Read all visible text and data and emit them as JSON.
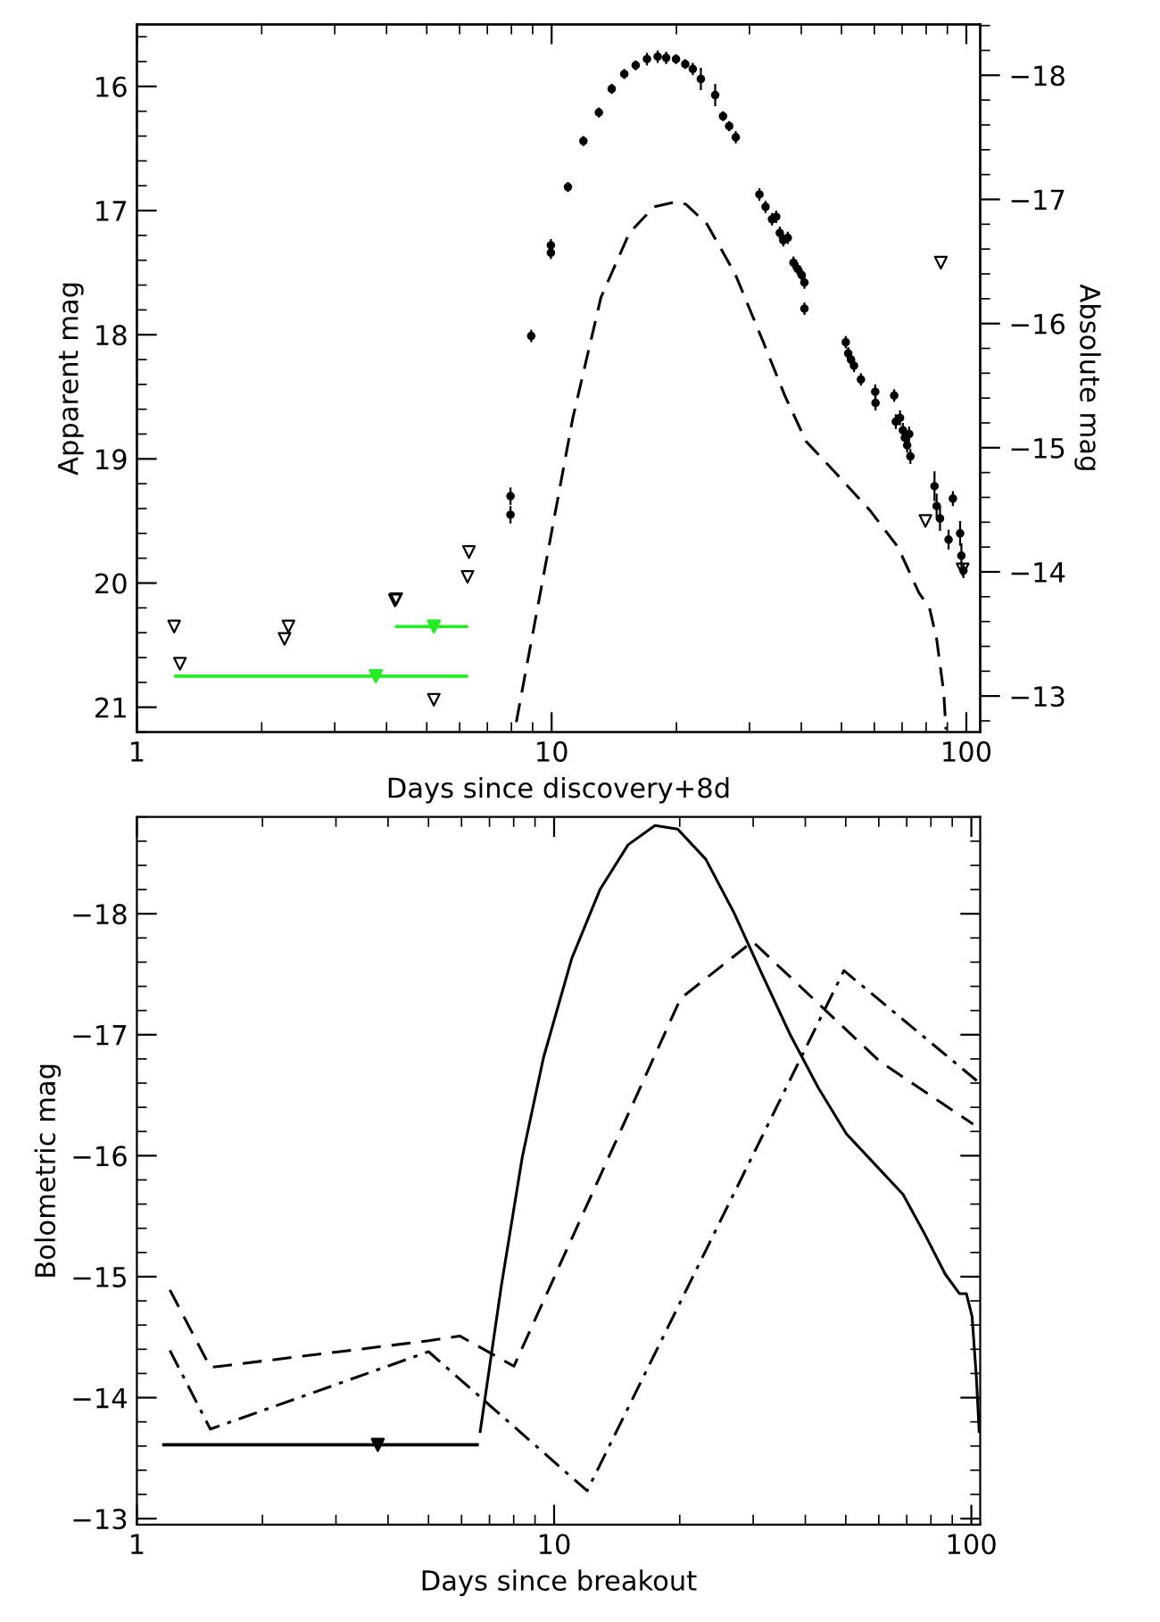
{
  "chart_data": [
    {
      "type": "scatter",
      "xlabel": "Days since discovery+8d",
      "ylabel": "Apparent mag",
      "y2label": "Absolute mag",
      "log": "x",
      "xlim": [
        1,
        108
      ],
      "xticks": [
        1,
        10,
        100
      ],
      "ylim": [
        21.2,
        15.5
      ],
      "yticks": [
        16,
        17,
        18,
        19,
        20,
        21
      ],
      "y2lim": [
        -12.71,
        -18.41
      ],
      "y2ticks": [
        {
          "value": -18,
          "label": "−18"
        },
        {
          "value": -17,
          "label": "−17"
        },
        {
          "value": -16,
          "label": "−16"
        },
        {
          "value": -15,
          "label": "−15"
        },
        {
          "value": -14,
          "label": "−14"
        },
        {
          "value": -13,
          "label": "−13"
        }
      ],
      "grid": false,
      "legend": false,
      "series": [
        {
          "marker": "circle",
          "color": "#000000",
          "x": [
            7.96,
            7.96,
            8.93,
            9.96,
            9.96,
            10.95,
            11.93,
            13.0,
            13.96,
            14.97,
            15.95,
            16.98,
            18.02,
            18.89,
            19.95,
            21.0,
            21.9,
            22.9,
            24.8,
            25.9,
            26.8,
            27.8,
            31.7,
            32.8,
            34.0,
            34.8,
            35.5,
            36.2,
            37.1,
            38.3,
            39.2,
            40.1,
            40.7,
            40.7,
            51.2,
            51.9,
            52.7,
            53.6,
            55.7,
            60.3,
            60.4,
            67.0,
            67.6,
            69.2,
            70.3,
            71.1,
            72.0,
            72.8,
            73.3,
            83.8,
            84.8,
            86.4,
            90.6,
            92.8,
            96.6,
            97.3,
            98.4
          ],
          "values": [
            19.3,
            19.45,
            18.01,
            17.28,
            17.34,
            16.81,
            16.44,
            16.21,
            16.02,
            15.9,
            15.83,
            15.78,
            15.76,
            15.77,
            15.78,
            15.82,
            15.86,
            15.94,
            16.07,
            16.24,
            16.32,
            16.41,
            16.87,
            16.97,
            17.07,
            17.05,
            17.18,
            17.24,
            17.22,
            17.42,
            17.47,
            17.52,
            17.58,
            17.79,
            18.06,
            18.15,
            18.2,
            18.25,
            18.36,
            18.46,
            18.55,
            18.49,
            18.7,
            18.67,
            18.77,
            18.83,
            18.89,
            18.8,
            18.98,
            19.22,
            19.38,
            19.48,
            19.65,
            19.32,
            19.6,
            19.78,
            19.9
          ],
          "errors": [
            0.07,
            0.07,
            0.05,
            0.05,
            0.05,
            0.04,
            0.04,
            0.04,
            0.04,
            0.04,
            0.04,
            0.05,
            0.05,
            0.05,
            0.04,
            0.04,
            0.05,
            0.09,
            0.09,
            0.04,
            0.04,
            0.05,
            0.05,
            0.05,
            0.05,
            0.05,
            0.05,
            0.05,
            0.05,
            0.05,
            0.05,
            0.05,
            0.05,
            0.05,
            0.05,
            0.05,
            0.05,
            0.05,
            0.05,
            0.06,
            0.06,
            0.05,
            0.06,
            0.06,
            0.06,
            0.06,
            0.06,
            0.06,
            0.06,
            0.12,
            0.1,
            0.1,
            0.08,
            0.06,
            0.1,
            0.1,
            0.06
          ]
        },
        {
          "marker": "triangle",
          "color": "#000000",
          "x": [
            1.23,
            1.27,
            2.27,
            2.32,
            4.19,
            4.22,
            5.2,
            6.27,
            6.32,
            79.7,
            86.8,
            98.0
          ],
          "values": [
            20.35,
            20.65,
            20.45,
            20.35,
            20.14,
            20.13,
            20.94,
            19.95,
            19.75,
            19.5,
            17.42,
            19.89
          ]
        },
        {
          "marker": "triangle",
          "color": "#22ee22",
          "x": [
            3.77,
            5.2
          ],
          "values": [
            20.75,
            20.35
          ],
          "xerrors": [
            [
              1.23,
              6.29
            ],
            [
              4.19,
              6.29
            ]
          ]
        },
        {
          "type": "line",
          "line_style": "dashed",
          "color": "#000000",
          "x": [
            8.22,
            9.61,
            11.25,
            13.15,
            15.4,
            17.66,
            19.9,
            21.1,
            23.7,
            27.7,
            32.4,
            36.5,
            41.1,
            48.0,
            58.4,
            68.4,
            76.9,
            81.5,
            84.8,
            88.2,
            89.3
          ],
          "values": [
            21.12,
            19.9,
            18.67,
            17.7,
            17.18,
            16.97,
            16.93,
            16.95,
            17.11,
            17.51,
            18.06,
            18.49,
            18.86,
            19.1,
            19.41,
            19.71,
            20.08,
            20.2,
            20.45,
            20.88,
            21.18
          ]
        }
      ]
    },
    {
      "type": "line",
      "xlabel": "Days since breakout",
      "ylabel": "Bolometric mag",
      "log": "x",
      "xlim": [
        1,
        105
      ],
      "xticks": [
        1,
        10,
        100
      ],
      "ylim": [
        -12.95,
        -18.8
      ],
      "yticks": [
        {
          "value": -13,
          "label": "−13"
        },
        {
          "value": -14,
          "label": "−14"
        },
        {
          "value": -15,
          "label": "−15"
        },
        {
          "value": -16,
          "label": "−16"
        },
        {
          "value": -17,
          "label": "−17"
        },
        {
          "value": -18,
          "label": "−18"
        }
      ],
      "grid": false,
      "legend": false,
      "series": [
        {
          "line_style": "solid",
          "color": "#000000",
          "x": [
            6.65,
            7.47,
            8.39,
            9.43,
            11.02,
            12.88,
            15.04,
            17.45,
            19.77,
            23.1,
            26.97,
            31.5,
            36.8,
            43.0,
            50.2,
            58.7,
            68.6,
            77.1,
            86.6,
            93.6,
            97.3,
            100.4,
            102.8,
            104.4
          ],
          "values": [
            -13.72,
            -14.92,
            -15.99,
            -16.81,
            -17.63,
            -18.2,
            -18.57,
            -18.73,
            -18.7,
            -18.45,
            -18.01,
            -17.5,
            -17.0,
            -16.56,
            -16.18,
            -15.93,
            -15.68,
            -15.36,
            -15.02,
            -14.86,
            -14.86,
            -14.67,
            -14.17,
            -13.72
          ]
        },
        {
          "line_style": "dashed",
          "color": "#000000",
          "x": [
            1.2,
            1.5,
            5.0,
            5.94,
            8.01,
            20.1,
            29.9,
            60.3,
            101
          ],
          "values": [
            -14.89,
            -14.25,
            -14.47,
            -14.51,
            -14.26,
            -17.3,
            -17.77,
            -16.78,
            -16.26
          ]
        },
        {
          "line_style": "dashdot",
          "color": "#000000",
          "x": [
            1.2,
            1.5,
            5.0,
            12.0,
            49.5,
            103
          ],
          "values": [
            -14.39,
            -13.74,
            -14.38,
            -13.23,
            -17.53,
            -16.62
          ]
        },
        {
          "type": "scatter",
          "marker": "triangle",
          "color": "#000000",
          "x": [
            3.78
          ],
          "values": [
            -13.61
          ],
          "xerrors": [
            [
              1.15,
              6.6
            ]
          ]
        }
      ]
    }
  ]
}
